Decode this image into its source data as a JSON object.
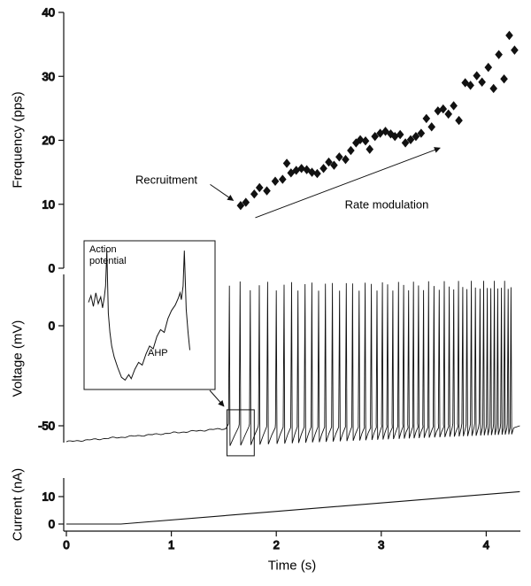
{
  "axes": {
    "xlabel": "Time (s)",
    "x_ticks": [
      "0",
      "1",
      "2",
      "3",
      "4"
    ],
    "xlim": [
      0,
      4.32
    ]
  },
  "chart_data": [
    {
      "type": "scatter",
      "name": "instantaneous-firing-frequency",
      "ylabel": "Frequency (pps)",
      "ylim": [
        0,
        40
      ],
      "y_ticks": [
        40,
        30,
        20,
        10,
        0
      ],
      "marker": "filled-diamond",
      "points": [
        [
          1.66,
          9.8
        ],
        [
          1.71,
          10.3
        ],
        [
          1.79,
          11.6
        ],
        [
          1.84,
          12.6
        ],
        [
          1.91,
          12.1
        ],
        [
          1.99,
          13.6
        ],
        [
          2.06,
          13.9
        ],
        [
          2.1,
          16.4
        ],
        [
          2.14,
          14.9
        ],
        [
          2.19,
          15.3
        ],
        [
          2.24,
          15.6
        ],
        [
          2.29,
          15.4
        ],
        [
          2.34,
          15.0
        ],
        [
          2.39,
          14.8
        ],
        [
          2.45,
          15.6
        ],
        [
          2.5,
          16.6
        ],
        [
          2.55,
          16.1
        ],
        [
          2.6,
          17.4
        ],
        [
          2.66,
          17.0
        ],
        [
          2.71,
          18.4
        ],
        [
          2.76,
          19.6
        ],
        [
          2.8,
          20.1
        ],
        [
          2.85,
          19.9
        ],
        [
          2.89,
          18.6
        ],
        [
          2.94,
          20.6
        ],
        [
          2.99,
          21.1
        ],
        [
          3.04,
          21.4
        ],
        [
          3.09,
          21.0
        ],
        [
          3.13,
          20.6
        ],
        [
          3.18,
          20.9
        ],
        [
          3.23,
          19.6
        ],
        [
          3.28,
          20.1
        ],
        [
          3.33,
          20.6
        ],
        [
          3.38,
          21.1
        ],
        [
          3.43,
          23.4
        ],
        [
          3.48,
          22.1
        ],
        [
          3.54,
          24.6
        ],
        [
          3.59,
          24.9
        ],
        [
          3.64,
          24.1
        ],
        [
          3.69,
          25.4
        ],
        [
          3.74,
          23.1
        ],
        [
          3.8,
          29.0
        ],
        [
          3.85,
          28.6
        ],
        [
          3.91,
          30.1
        ],
        [
          3.96,
          29.1
        ],
        [
          4.02,
          31.4
        ],
        [
          4.07,
          28.1
        ],
        [
          4.12,
          33.4
        ],
        [
          4.17,
          29.6
        ],
        [
          4.22,
          36.4
        ],
        [
          4.27,
          34.1
        ]
      ],
      "annotations": {
        "recruitment": {
          "text": "Recruitment",
          "arrow_from_s_pps": [
            1.37,
            13.1
          ],
          "arrow_to_s_pps": [
            1.59,
            10.6
          ]
        },
        "rate_modulation": {
          "text": "Rate modulation",
          "arrow_from_s_pps": [
            1.8,
            7.9
          ],
          "arrow_to_s_pps": [
            3.56,
            18.8
          ]
        }
      }
    },
    {
      "type": "line",
      "name": "membrane-voltage",
      "ylabel": "Voltage (mV)",
      "ylim": [
        -70,
        30
      ],
      "y_ticks": [
        0,
        -50
      ],
      "baseline_mV": {
        "start": -58,
        "at_recruitment": -51
      },
      "recruitment_time_s": 1.555,
      "spike_peak_mV": 20,
      "ahp_mV": -60,
      "inset": {
        "label_action_potential": "Action potential",
        "label_ahp": "AHP",
        "zoom_region_s": [
          1.53,
          1.79
        ],
        "zoom_region_mV": [
          -42,
          -65
        ],
        "trace_norm": [
          [
            0.0,
            0.4
          ],
          [
            0.02,
            0.35
          ],
          [
            0.04,
            0.43
          ],
          [
            0.06,
            0.33
          ],
          [
            0.08,
            0.41
          ],
          [
            0.1,
            0.36
          ],
          [
            0.115,
            0.44
          ],
          [
            0.13,
            0.36
          ],
          [
            0.14,
            0.28
          ],
          [
            0.15,
            0.02
          ],
          [
            0.162,
            0.48
          ],
          [
            0.175,
            0.62
          ],
          [
            0.19,
            0.72
          ],
          [
            0.21,
            0.8
          ],
          [
            0.24,
            0.88
          ],
          [
            0.27,
            0.95
          ],
          [
            0.3,
            0.97
          ],
          [
            0.33,
            0.93
          ],
          [
            0.35,
            0.96
          ],
          [
            0.38,
            0.89
          ],
          [
            0.41,
            0.84
          ],
          [
            0.44,
            0.86
          ],
          [
            0.47,
            0.78
          ],
          [
            0.5,
            0.72
          ],
          [
            0.53,
            0.74
          ],
          [
            0.56,
            0.65
          ],
          [
            0.59,
            0.6
          ],
          [
            0.62,
            0.62
          ],
          [
            0.65,
            0.52
          ],
          [
            0.68,
            0.46
          ],
          [
            0.71,
            0.42
          ],
          [
            0.735,
            0.37
          ],
          [
            0.75,
            0.33
          ],
          [
            0.76,
            0.38
          ],
          [
            0.775,
            0.28
          ],
          [
            0.785,
            0.02
          ],
          [
            0.8,
            0.45
          ],
          [
            0.815,
            0.62
          ],
          [
            0.83,
            0.75
          ]
        ]
      }
    },
    {
      "type": "line",
      "name": "injected-current-ramp",
      "ylabel": "Current (nA)",
      "ylim": [
        0,
        13
      ],
      "y_ticks": [
        10,
        0
      ],
      "points_s_nA": [
        [
          0,
          0
        ],
        [
          0.52,
          0
        ],
        [
          4.32,
          11.8
        ]
      ]
    }
  ],
  "colors": {
    "ink": "#111111",
    "background": "#ffffff"
  }
}
